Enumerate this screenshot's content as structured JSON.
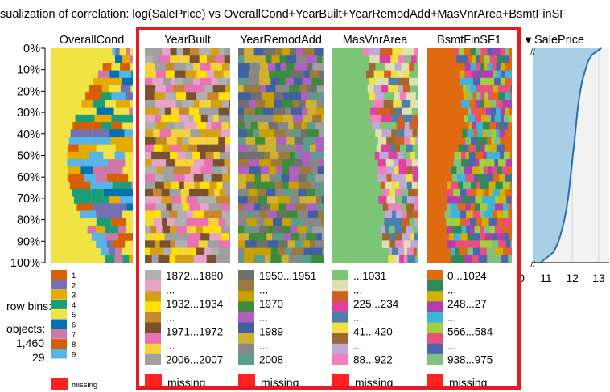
{
  "title": "sualization of correlation: log(SalePrice) vs OverallCond+YearBuilt+YearRemodAdd+MasVnrArea+BsmtFinSF",
  "side": {
    "row_bins_label": "row bins:",
    "objects_label": "objects:",
    "objects_value": "1,460",
    "row_bins_value": "29"
  },
  "colors": {
    "highlight": "#e51b24",
    "missing": "#ff2020",
    "overallcond_palette": [
      "#d95f02",
      "#7570b3",
      "#e6ab02",
      "#1b9e77",
      "#f0e442",
      "#0072b2",
      "#cc79a7",
      "#d55e00",
      "#56b4e9"
    ]
  },
  "chart_data": {
    "type": "heatmap",
    "y_axis": {
      "ticks": [
        "0%",
        "10%",
        "20%",
        "30%",
        "40%",
        "50%",
        "60%",
        "70%",
        "80%",
        "90%",
        "100%"
      ],
      "range": [
        0,
        100
      ]
    },
    "sorted_by": "SalePrice",
    "columns": [
      {
        "name": "OverallCond",
        "legend": [
          "1",
          "2",
          "3",
          "4",
          "5",
          "6",
          "7",
          "8",
          "9"
        ],
        "missing_label": "missing"
      },
      {
        "name": "YearBuilt",
        "legend": [
          "1872...1880",
          "...",
          "1932...1934",
          "...",
          "1971...1972",
          "...",
          "2006...2007"
        ],
        "missing_label": "missing"
      },
      {
        "name": "YearRemodAdd",
        "legend": [
          "1950...1951",
          "...",
          "1970",
          "...",
          "1989",
          "...",
          "2008"
        ],
        "missing_label": "missing"
      },
      {
        "name": "MasVnrArea",
        "legend": [
          "...1031",
          "...",
          "225...234",
          "...",
          "41...420",
          "...",
          "88...922"
        ],
        "missing_label": "missing"
      },
      {
        "name": "BsmtFinSF1",
        "legend": [
          "0...1024",
          "...",
          "248...27",
          "...",
          "566...584",
          "...",
          "938...975"
        ],
        "missing_label": "missing"
      }
    ],
    "target": {
      "name": "SalePrice",
      "sort_marker": "▼",
      "x_ticks": [
        "0",
        "11",
        "12",
        "13"
      ],
      "xlim": [
        10.5,
        13.4
      ],
      "quantile_curve": [
        [
          0,
          13.1
        ],
        [
          3,
          12.75
        ],
        [
          6,
          12.6
        ],
        [
          10,
          12.5
        ],
        [
          15,
          12.38
        ],
        [
          20,
          12.3
        ],
        [
          25,
          12.24
        ],
        [
          30,
          12.19
        ],
        [
          35,
          12.15
        ],
        [
          40,
          12.11
        ],
        [
          45,
          12.07
        ],
        [
          50,
          12.02
        ],
        [
          55,
          11.98
        ],
        [
          60,
          11.93
        ],
        [
          65,
          11.89
        ],
        [
          70,
          11.84
        ],
        [
          75,
          11.78
        ],
        [
          80,
          11.7
        ],
        [
          85,
          11.6
        ],
        [
          90,
          11.48
        ],
        [
          95,
          11.3
        ],
        [
          98,
          11.0
        ],
        [
          100,
          10.8
        ]
      ]
    }
  }
}
